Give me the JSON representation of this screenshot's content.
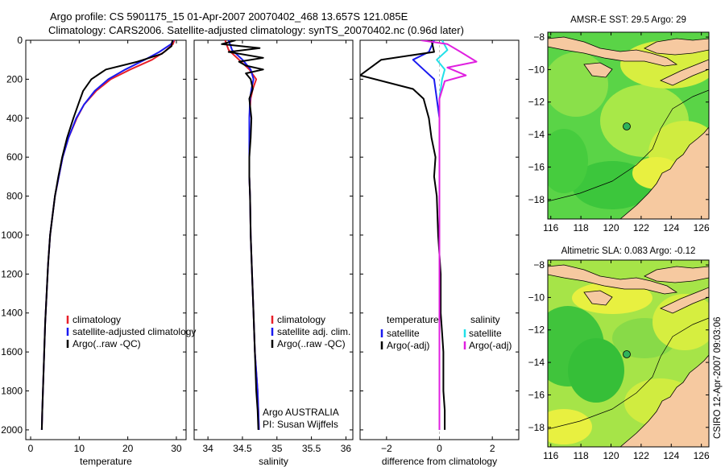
{
  "header": {
    "line1": "Argo profile: CS 5901175_15 01-Apr-2007 20070402_468 13.657S 121.085E",
    "line2": "Climatology: CARS2006. Satellite-adjusted climatology: synTS_20070402.nc (0.96d later)"
  },
  "side_label": "CSIRO 12-Apr-2007 09:03:06",
  "colors": {
    "climatology": "#e8202a",
    "satellite": "#1a1af0",
    "argo": "#000000",
    "salinity_satellite": "#22e0e8",
    "salinity_argo": "#e020e0",
    "map_green": "#39c83a",
    "map_yellow": "#e8f040",
    "land": "#f6c9a0"
  },
  "chart_data": [
    {
      "id": "temperature",
      "type": "line",
      "xlabel": "temperature",
      "ylabel": "",
      "xlim": [
        -1,
        32
      ],
      "ylim": [
        2050,
        0
      ],
      "xticks": [
        0,
        10,
        20,
        30
      ],
      "yticks": [
        0,
        200,
        400,
        600,
        800,
        1000,
        1200,
        1400,
        1600,
        1800,
        2000
      ],
      "legend": {
        "placement": "bottom-right",
        "entries": [
          "climatology",
          "satellite-adjusted climatology",
          "Argo(..raw -QC)"
        ]
      },
      "series": [
        {
          "name": "climatology",
          "color": "#e8202a",
          "x": [
            29.6,
            29.3,
            27.5,
            25.0,
            20.5,
            16.5,
            13.5,
            11.0,
            9.5,
            7.8,
            6.6,
            5.8,
            5.0,
            4.5,
            4.0,
            3.6,
            3.3,
            3.0,
            2.8,
            2.6,
            2.4,
            2.3
          ],
          "y": [
            0,
            20,
            60,
            100,
            150,
            200,
            260,
            330,
            400,
            500,
            600,
            700,
            800,
            900,
            1000,
            1150,
            1300,
            1450,
            1600,
            1750,
            1900,
            2000
          ]
        },
        {
          "name": "satellite-adjusted climatology",
          "color": "#1a1af0",
          "x": [
            29.4,
            28.9,
            26.5,
            23.5,
            19.5,
            16.0,
            13.2,
            11.0,
            9.4,
            7.8,
            6.6,
            5.8,
            5.0,
            4.5,
            4.0,
            3.6,
            3.3,
            3.0,
            2.8,
            2.6,
            2.4,
            2.3
          ],
          "y": [
            0,
            20,
            60,
            100,
            150,
            200,
            260,
            330,
            400,
            500,
            600,
            700,
            800,
            900,
            1000,
            1150,
            1300,
            1450,
            1600,
            1750,
            1900,
            2000
          ]
        },
        {
          "name": "Argo(..raw -QC)",
          "color": "#000000",
          "x": [
            29.2,
            29.0,
            27.0,
            22.0,
            15.5,
            12.5,
            10.8,
            9.8,
            8.8,
            7.5,
            6.5,
            5.7,
            5.0,
            4.5,
            4.0,
            3.6,
            3.3,
            3.0,
            2.8,
            2.6,
            2.4,
            2.3
          ],
          "y": [
            0,
            30,
            70,
            110,
            150,
            200,
            260,
            330,
            400,
            500,
            600,
            700,
            800,
            900,
            1000,
            1150,
            1300,
            1450,
            1600,
            1750,
            1900,
            2000
          ]
        }
      ]
    },
    {
      "id": "salinity",
      "type": "line",
      "xlabel": "salinity",
      "ylabel": "",
      "xlim": [
        33.8,
        36.1
      ],
      "ylim": [
        2050,
        0
      ],
      "xticks": [
        34,
        34.5,
        35,
        35.5,
        36
      ],
      "legend": {
        "placement": "bottom-right",
        "entries": [
          "climatology",
          "satellite adj. clim.",
          "Argo(..raw -QC)"
        ]
      },
      "annotation": {
        "line1": "Argo AUSTRALIA",
        "line2": "PI: Susan Wijffels"
      },
      "series": [
        {
          "name": "climatology",
          "color": "#e8202a",
          "x": [
            34.25,
            34.3,
            34.45,
            34.6,
            34.7,
            34.65,
            34.62,
            34.6,
            34.6,
            34.6,
            34.6,
            34.61,
            34.62,
            34.64,
            34.66,
            34.68,
            34.7,
            34.72,
            34.73,
            34.74
          ],
          "y": [
            0,
            50,
            100,
            150,
            200,
            250,
            300,
            400,
            500,
            600,
            700,
            800,
            1000,
            1200,
            1400,
            1600,
            1700,
            1800,
            1900,
            2000
          ]
        },
        {
          "name": "satellite adj. clim.",
          "color": "#1a1af0",
          "x": [
            34.3,
            34.35,
            34.5,
            34.62,
            34.66,
            34.63,
            34.61,
            34.6,
            34.6,
            34.6,
            34.6,
            34.61,
            34.62,
            34.64,
            34.66,
            34.68,
            34.7,
            34.72,
            34.73,
            34.74
          ],
          "y": [
            0,
            50,
            100,
            150,
            200,
            250,
            300,
            400,
            500,
            600,
            700,
            800,
            1000,
            1200,
            1400,
            1600,
            1700,
            1800,
            1900,
            2000
          ]
        },
        {
          "name": "Argo(..raw -QC)",
          "color": "#000000",
          "x": [
            34.4,
            34.2,
            34.75,
            34.3,
            34.8,
            34.45,
            34.55,
            34.8,
            34.55,
            34.62,
            34.65,
            34.6,
            34.63,
            34.62,
            34.6,
            34.6,
            34.61,
            34.62,
            34.64,
            34.66,
            34.68,
            34.7,
            34.72,
            34.73
          ],
          "y": [
            0,
            20,
            40,
            60,
            90,
            110,
            130,
            150,
            170,
            200,
            250,
            300,
            400,
            500,
            600,
            700,
            800,
            1000,
            1200,
            1400,
            1600,
            1800,
            1900,
            2000
          ]
        }
      ]
    },
    {
      "id": "difference",
      "type": "line",
      "xlabel": "difference from climatology",
      "ylabel": "",
      "xlim": [
        -3.0,
        3.0
      ],
      "ylim": [
        2050,
        0
      ],
      "xticks": [
        -2,
        0,
        2
      ],
      "legend": {
        "placement": "bottom",
        "left_header": "temperature",
        "right_header": "salinity",
        "left_entries": [
          "satellite",
          "Argo(-adj)"
        ],
        "right_entries": [
          "satellite",
          "Argo(-adj)"
        ]
      },
      "series": [
        {
          "name": "temperature satellite",
          "color": "#1a1af0",
          "x": [
            -0.2,
            -0.4,
            -1.0,
            -0.6,
            -0.2,
            -0.1,
            0.0,
            0.0,
            0.0,
            0.0,
            0.0,
            0.0,
            0.0
          ],
          "y": [
            0,
            60,
            100,
            150,
            200,
            300,
            400,
            600,
            800,
            1000,
            1400,
            1800,
            2000
          ]
        },
        {
          "name": "temperature Argo(-adj)",
          "color": "#000000",
          "x": [
            -0.3,
            -0.2,
            -2.2,
            -3.0,
            -1.0,
            -0.6,
            -0.4,
            -0.3,
            -0.15,
            -0.2,
            -0.1,
            -0.05,
            0.05,
            0.05,
            0.1,
            0.15,
            0.15,
            0.2,
            0.2
          ],
          "y": [
            0,
            60,
            100,
            180,
            250,
            300,
            400,
            500,
            600,
            700,
            800,
            1000,
            1200,
            1400,
            1500,
            1600,
            1800,
            1900,
            2000
          ]
        },
        {
          "name": "salinity satellite",
          "color": "#22e0e8",
          "x": [
            0.1,
            0.3,
            -0.1,
            0.2,
            0.1,
            0.0,
            0.0,
            0.0,
            0.0,
            0.0,
            0.0,
            0.0
          ],
          "y": [
            0,
            50,
            100,
            150,
            200,
            300,
            400,
            600,
            800,
            1000,
            1500,
            2000
          ]
        },
        {
          "name": "salinity Argo(-adj)",
          "color": "#e020e0",
          "x": [
            -0.7,
            0.3,
            0.8,
            1.4,
            0.3,
            1.0,
            0.2,
            0.0,
            0.0,
            0.0,
            0.0
          ],
          "y": [
            0,
            20,
            60,
            110,
            140,
            180,
            210,
            300,
            500,
            1000,
            2000
          ]
        }
      ]
    },
    {
      "id": "map-sst",
      "type": "heatmap",
      "title": "AMSR-E SST: 29.5 Argo: 29",
      "xlim": [
        115.8,
        126.5
      ],
      "ylim": [
        -19.2,
        -7.7
      ],
      "xticks": [
        116,
        118,
        120,
        122,
        124,
        126
      ],
      "yticks": [
        -8,
        -10,
        -12,
        -14,
        -16,
        -18
      ],
      "marker": {
        "lon": 121.085,
        "lat": -13.657
      }
    },
    {
      "id": "map-sla",
      "type": "heatmap",
      "title": "Altimetric SLA: 0.083 Argo: -0.12",
      "xlim": [
        115.8,
        126.5
      ],
      "ylim": [
        -19.2,
        -7.7
      ],
      "xticks": [
        116,
        118,
        120,
        122,
        124,
        126
      ],
      "yticks": [
        -8,
        -10,
        -12,
        -14,
        -16,
        -18
      ],
      "marker": {
        "lon": 121.085,
        "lat": -13.657
      }
    }
  ]
}
